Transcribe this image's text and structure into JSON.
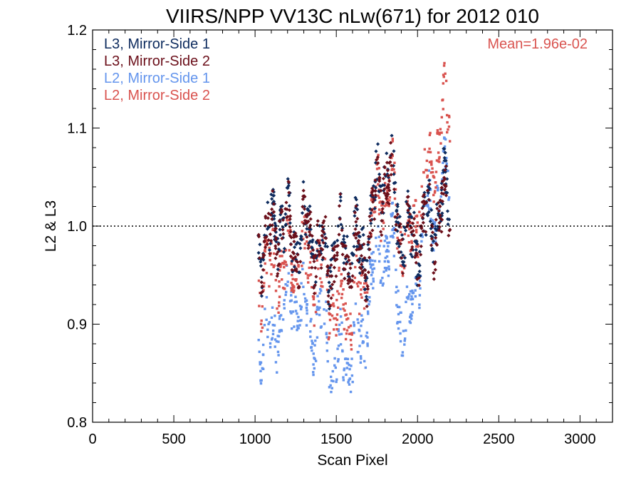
{
  "chart_data": {
    "type": "scatter",
    "title": "VIIRS/NPP VV13C nLw(671) for 2012 010",
    "xlabel": "Scan Pixel",
    "ylabel": "L2 & L3",
    "xlim": [
      0,
      3200
    ],
    "ylim": [
      0.8,
      1.2
    ],
    "x_ticks": [
      0,
      500,
      1000,
      1500,
      2000,
      2500,
      3000
    ],
    "y_ticks": [
      0.8,
      0.9,
      1.0,
      1.1,
      1.2
    ],
    "x_tick_labels": [
      "0",
      "500",
      "1000",
      "1500",
      "2000",
      "2500",
      "3000"
    ],
    "y_tick_labels": [
      "0.8",
      "0.9",
      "1.0",
      "1.1",
      "1.2"
    ],
    "reference_line": {
      "y": 1.0,
      "style": "dotted"
    },
    "annotation": {
      "text": "Mean=1.96e-02",
      "color": "#d9534f",
      "placement": "top-right"
    },
    "legend_placement": "top-left",
    "series": [
      {
        "name": "L3, Mirror-Side 1",
        "color": "#0d2b5e",
        "marker": "diamond",
        "x_range": [
          1020,
          2200
        ],
        "profile_x": [
          1020,
          1100,
          1150,
          1200,
          1250,
          1300,
          1350,
          1400,
          1450,
          1500,
          1550,
          1600,
          1650,
          1700,
          1750,
          1800,
          1850,
          1900,
          1950,
          2000,
          2050,
          2100,
          2150,
          2200
        ],
        "profile_y": [
          0.985,
          0.99,
          1.01,
          0.995,
          0.985,
          0.99,
          0.995,
          0.975,
          0.97,
          0.975,
          0.98,
          0.975,
          0.97,
          0.985,
          1.04,
          1.06,
          1.04,
          1.0,
          0.985,
          0.99,
          1.0,
          1.005,
          1.02,
          1.035
        ],
        "spread": 0.045
      },
      {
        "name": "L3, Mirror-Side 2",
        "color": "#6b0f1a",
        "marker": "diamond",
        "x_range": [
          1020,
          2200
        ],
        "profile_x": [
          1020,
          1100,
          1150,
          1200,
          1250,
          1300,
          1350,
          1400,
          1450,
          1500,
          1550,
          1600,
          1650,
          1700,
          1750,
          1800,
          1850,
          1900,
          1950,
          2000,
          2050,
          2100,
          2150,
          2200
        ],
        "profile_y": [
          0.98,
          0.985,
          1.005,
          0.99,
          0.98,
          0.985,
          0.99,
          0.97,
          0.965,
          0.97,
          0.975,
          0.97,
          0.965,
          0.98,
          1.035,
          1.055,
          1.035,
          0.995,
          0.98,
          0.985,
          0.995,
          1.0,
          1.015,
          1.03
        ],
        "spread": 0.045
      },
      {
        "name": "L2, Mirror-Side 1",
        "color": "#6495ed",
        "marker": "square",
        "x_range": [
          1020,
          2200
        ],
        "profile_x": [
          1020,
          1060,
          1100,
          1150,
          1200,
          1250,
          1300,
          1350,
          1400,
          1450,
          1500,
          1550,
          1600,
          1650,
          1700,
          1750,
          1800,
          1850,
          1900,
          1950,
          2000,
          2050,
          2100,
          2150,
          2200
        ],
        "profile_y": [
          0.88,
          0.9,
          0.87,
          0.91,
          0.92,
          0.93,
          0.915,
          0.89,
          0.91,
          0.875,
          0.85,
          0.87,
          0.87,
          0.875,
          0.93,
          0.96,
          0.98,
          0.965,
          0.91,
          0.895,
          0.96,
          1.0,
          1.02,
          1.04,
          1.05
        ],
        "spread": 0.04
      },
      {
        "name": "L2, Mirror-Side 2",
        "color": "#d9534f",
        "marker": "square",
        "x_range": [
          1020,
          2200
        ],
        "profile_x": [
          1020,
          1060,
          1100,
          1150,
          1200,
          1250,
          1300,
          1350,
          1400,
          1450,
          1500,
          1550,
          1600,
          1650,
          1700,
          1750,
          1800,
          1850,
          1900,
          1950,
          2000,
          2050,
          2100,
          2150,
          2200
        ],
        "profile_y": [
          0.94,
          0.96,
          0.945,
          0.965,
          0.96,
          0.97,
          0.965,
          0.945,
          0.955,
          0.93,
          0.91,
          0.92,
          0.925,
          0.93,
          0.98,
          1.03,
          1.045,
          1.04,
          0.99,
          0.975,
          1.02,
          1.05,
          1.07,
          1.1,
          1.12
        ],
        "spread": 0.045
      }
    ]
  }
}
